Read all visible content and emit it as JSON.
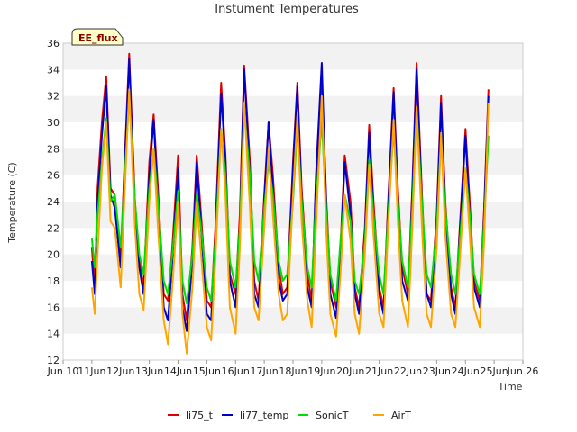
{
  "chart_data": {
    "type": "line",
    "title": "Instument Temperatures",
    "xlabel": "Time",
    "ylabel": "Temperature (C)",
    "badge": "EE_flux",
    "xlim": [
      10,
      26
    ],
    "ylim": [
      12,
      36
    ],
    "yticks": [
      12,
      14,
      16,
      18,
      20,
      22,
      24,
      26,
      28,
      30,
      32,
      34,
      36
    ],
    "xticks": [
      {
        "value": 10,
        "label": "Jun 10"
      },
      {
        "value": 11,
        "label": "11Jun"
      },
      {
        "value": 12,
        "label": "12Jun"
      },
      {
        "value": 13,
        "label": "13Jun"
      },
      {
        "value": 14,
        "label": "14Jun"
      },
      {
        "value": 15,
        "label": "15Jun"
      },
      {
        "value": 16,
        "label": "16Jun"
      },
      {
        "value": 17,
        "label": "17Jun"
      },
      {
        "value": 18,
        "label": "18Jun"
      },
      {
        "value": 19,
        "label": "19Jun"
      },
      {
        "value": 20,
        "label": "20Jun"
      },
      {
        "value": 21,
        "label": "21Jun"
      },
      {
        "value": 22,
        "label": "22Jun"
      },
      {
        "value": 23,
        "label": "23Jun"
      },
      {
        "value": 24,
        "label": "24Jun"
      },
      {
        "value": 25,
        "label": "25Jun"
      },
      {
        "value": 26,
        "label": "Jun 26"
      }
    ],
    "grid": "alternating horizontal bands",
    "legend_position": "bottom-center",
    "series": [
      {
        "name": "li75_t",
        "color": "#dd0000",
        "x": [
          11.0,
          11.1,
          11.2,
          11.35,
          11.5,
          11.65,
          11.8,
          12.0,
          12.15,
          12.3,
          12.5,
          12.65,
          12.8,
          13.0,
          13.15,
          13.3,
          13.5,
          13.65,
          13.8,
          14.0,
          14.15,
          14.3,
          14.5,
          14.65,
          14.8,
          15.0,
          15.15,
          15.3,
          15.5,
          15.65,
          15.8,
          16.0,
          16.15,
          16.3,
          16.5,
          16.65,
          16.8,
          17.0,
          17.15,
          17.3,
          17.5,
          17.65,
          17.8,
          18.0,
          18.15,
          18.3,
          18.5,
          18.65,
          18.8,
          19.0,
          19.15,
          19.3,
          19.5,
          19.65,
          19.8,
          20.0,
          20.15,
          20.3,
          20.5,
          20.65,
          20.8,
          21.0,
          21.15,
          21.3,
          21.5,
          21.65,
          21.8,
          22.0,
          22.15,
          22.3,
          22.5,
          22.65,
          22.8,
          23.0,
          23.15,
          23.3,
          23.5,
          23.65,
          23.8,
          24.0,
          24.15,
          24.3,
          24.5,
          24.65,
          24.8
        ],
        "y": [
          20.5,
          17.5,
          25.0,
          30.0,
          33.5,
          25.0,
          24.5,
          19.5,
          27.5,
          35.2,
          24.0,
          19.5,
          17.5,
          27.0,
          30.6,
          25.0,
          17.0,
          16.5,
          20.5,
          27.5,
          17.0,
          15.0,
          20.5,
          27.5,
          23.0,
          16.5,
          16.0,
          22.0,
          33.0,
          27.5,
          18.5,
          17.0,
          23.0,
          34.3,
          27.0,
          18.0,
          16.5,
          24.5,
          30.0,
          26.0,
          19.0,
          17.0,
          17.5,
          27.0,
          33.0,
          25.0,
          18.5,
          16.5,
          24.0,
          33.0,
          24.5,
          18.0,
          16.0,
          20.5,
          27.5,
          24.0,
          17.5,
          16.0,
          22.0,
          29.8,
          24.0,
          17.5,
          16.0,
          23.5,
          32.6,
          25.0,
          19.0,
          17.0,
          25.0,
          34.5,
          24.0,
          17.0,
          16.5,
          23.0,
          32.0,
          24.0,
          17.5,
          16.0,
          22.0,
          29.5,
          24.0,
          18.0,
          16.5,
          23.5,
          32.5
        ]
      },
      {
        "name": "li77_temp",
        "color": "#0000cc",
        "x": [
          11.0,
          11.1,
          11.2,
          11.35,
          11.5,
          11.65,
          11.8,
          12.0,
          12.15,
          12.3,
          12.5,
          12.65,
          12.8,
          13.0,
          13.15,
          13.3,
          13.5,
          13.65,
          13.8,
          14.0,
          14.15,
          14.3,
          14.5,
          14.65,
          14.8,
          15.0,
          15.15,
          15.3,
          15.5,
          15.65,
          15.8,
          16.0,
          16.15,
          16.3,
          16.5,
          16.65,
          16.8,
          17.0,
          17.15,
          17.3,
          17.5,
          17.65,
          17.8,
          18.0,
          18.15,
          18.3,
          18.5,
          18.65,
          18.8,
          19.0,
          19.15,
          19.3,
          19.5,
          19.65,
          19.8,
          20.0,
          20.15,
          20.3,
          20.5,
          20.65,
          20.8,
          21.0,
          21.15,
          21.3,
          21.5,
          21.65,
          21.8,
          22.0,
          22.15,
          22.3,
          22.5,
          22.65,
          22.8,
          23.0,
          23.15,
          23.3,
          23.5,
          23.65,
          23.8,
          24.0,
          24.15,
          24.3,
          24.5,
          24.65,
          24.8
        ],
        "y": [
          19.5,
          17.0,
          24.0,
          29.0,
          32.8,
          24.5,
          23.5,
          19.0,
          27.0,
          34.8,
          23.0,
          19.0,
          17.0,
          26.0,
          30.2,
          24.0,
          16.0,
          15.0,
          19.5,
          26.5,
          16.0,
          14.2,
          19.5,
          27.0,
          22.0,
          15.5,
          15.0,
          21.0,
          32.2,
          27.0,
          18.0,
          16.0,
          22.0,
          34.0,
          26.0,
          17.0,
          16.0,
          24.0,
          30.0,
          25.0,
          18.0,
          16.5,
          17.0,
          26.5,
          32.7,
          24.0,
          17.5,
          16.0,
          26.0,
          34.5,
          24.0,
          17.0,
          15.2,
          20.0,
          27.0,
          23.0,
          17.0,
          15.5,
          21.5,
          29.2,
          23.0,
          17.0,
          15.5,
          23.0,
          32.3,
          24.0,
          18.0,
          16.5,
          24.5,
          34.0,
          23.0,
          17.0,
          16.0,
          22.5,
          31.5,
          23.0,
          17.0,
          15.5,
          21.5,
          29.0,
          23.0,
          17.5,
          16.0,
          23.0,
          32.0
        ]
      },
      {
        "name": "SonicT",
        "color": "#00dd00",
        "x": [
          11.0,
          11.1,
          11.2,
          11.35,
          11.5,
          11.65,
          11.8,
          12.0,
          12.15,
          12.3,
          12.5,
          12.65,
          12.8,
          13.0,
          13.15,
          13.3,
          13.5,
          13.65,
          13.8,
          14.0,
          14.15,
          14.3,
          14.5,
          14.65,
          14.8,
          15.0,
          15.15,
          15.3,
          15.5,
          15.65,
          15.8,
          16.0,
          16.15,
          16.3,
          16.5,
          16.65,
          16.8,
          17.0,
          17.15,
          17.3,
          17.5,
          17.65,
          17.8,
          18.0,
          18.15,
          18.3,
          18.5,
          18.65,
          18.8,
          19.0,
          19.15,
          19.3,
          19.5,
          19.65,
          19.8,
          20.0,
          20.15,
          20.3,
          20.5,
          20.65,
          20.8,
          21.0,
          21.15,
          21.3,
          21.5,
          21.65,
          21.8,
          22.0,
          22.15,
          22.3,
          22.5,
          22.65,
          22.8,
          23.0,
          23.15,
          23.3,
          23.5,
          23.65,
          23.8,
          24.0,
          24.15,
          24.3,
          24.5,
          24.65,
          24.8
        ],
        "y": [
          21.2,
          19.0,
          23.0,
          27.0,
          30.3,
          24.0,
          24.5,
          20.5,
          26.0,
          32.0,
          24.0,
          20.0,
          18.5,
          25.0,
          28.0,
          24.0,
          18.0,
          17.0,
          20.0,
          24.8,
          18.0,
          16.3,
          20.0,
          24.6,
          22.0,
          17.5,
          16.5,
          21.0,
          29.5,
          26.0,
          19.5,
          17.5,
          22.0,
          31.0,
          26.0,
          19.5,
          18.0,
          23.5,
          27.0,
          24.5,
          19.5,
          18.0,
          18.5,
          24.0,
          29.8,
          24.0,
          19.0,
          17.5,
          24.0,
          30.2,
          23.5,
          18.5,
          16.5,
          21.0,
          24.5,
          22.5,
          18.0,
          17.0,
          21.0,
          27.2,
          23.0,
          18.5,
          17.0,
          22.5,
          29.6,
          24.0,
          19.5,
          17.5,
          23.5,
          31.0,
          23.5,
          18.5,
          17.5,
          22.0,
          28.8,
          23.5,
          18.5,
          17.0,
          21.0,
          26.5,
          23.0,
          18.5,
          17.0,
          22.5,
          29.0
        ]
      },
      {
        "name": "AirT",
        "color": "#ffa500",
        "x": [
          11.0,
          11.1,
          11.2,
          11.35,
          11.5,
          11.65,
          11.8,
          12.0,
          12.15,
          12.3,
          12.5,
          12.65,
          12.8,
          13.0,
          13.15,
          13.3,
          13.5,
          13.65,
          13.8,
          14.0,
          14.15,
          14.3,
          14.5,
          14.65,
          14.8,
          15.0,
          15.15,
          15.3,
          15.5,
          15.65,
          15.8,
          16.0,
          16.15,
          16.3,
          16.5,
          16.65,
          16.8,
          17.0,
          17.15,
          17.3,
          17.5,
          17.65,
          17.8,
          18.0,
          18.15,
          18.3,
          18.5,
          18.65,
          18.8,
          19.0,
          19.15,
          19.3,
          19.5,
          19.65,
          19.8,
          20.0,
          20.15,
          20.3,
          20.5,
          20.65,
          20.8,
          21.0,
          21.15,
          21.3,
          21.5,
          21.65,
          21.8,
          22.0,
          22.15,
          22.3,
          22.5,
          22.65,
          22.8,
          23.0,
          23.15,
          23.3,
          23.5,
          23.65,
          23.8,
          24.0,
          24.15,
          24.3,
          24.5,
          24.65,
          24.8
        ],
        "y": [
          17.5,
          15.5,
          20.0,
          26.5,
          30.0,
          22.5,
          22.0,
          17.5,
          25.0,
          32.5,
          22.0,
          17.0,
          15.8,
          24.0,
          28.0,
          22.0,
          15.0,
          13.2,
          17.5,
          24.0,
          15.5,
          12.5,
          17.5,
          24.0,
          20.0,
          14.5,
          13.5,
          19.5,
          29.5,
          24.5,
          16.0,
          14.0,
          20.5,
          31.5,
          23.5,
          16.0,
          15.0,
          22.0,
          28.0,
          23.0,
          17.0,
          15.0,
          15.5,
          24.5,
          30.5,
          22.5,
          16.5,
          14.5,
          22.0,
          32.0,
          22.0,
          15.5,
          13.8,
          18.5,
          24.5,
          21.0,
          15.5,
          14.0,
          20.0,
          26.8,
          21.5,
          15.5,
          14.5,
          21.5,
          30.2,
          22.5,
          16.5,
          14.5,
          22.0,
          31.2,
          21.5,
          15.5,
          14.5,
          20.5,
          29.2,
          21.5,
          15.5,
          14.5,
          19.5,
          26.5,
          21.5,
          16.0,
          14.5,
          21.0,
          31.5
        ]
      }
    ]
  }
}
